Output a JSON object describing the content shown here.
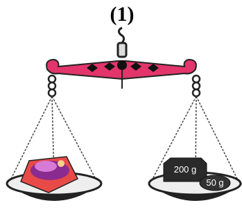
{
  "caption": "(1)",
  "weights": [
    {
      "label": "200 g"
    },
    {
      "label": "50 g"
    }
  ]
}
